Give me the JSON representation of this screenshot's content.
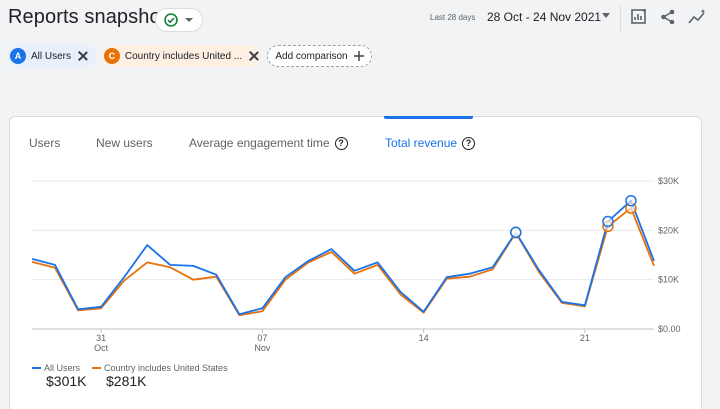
{
  "header": {
    "title": "Reports snapshot",
    "date_label": "Last 28 days",
    "date_range": "28 Oct - 24 Nov 2021",
    "icons": [
      "check-circle-icon",
      "chevron-down-icon",
      "customize-report-icon",
      "share-icon",
      "insights-icon"
    ]
  },
  "comparisons": [
    {
      "badge": "A",
      "label": "All Users",
      "color": "#1a73e8",
      "bg": "#e8f0fe"
    },
    {
      "badge": "C",
      "label": "Country includes United ...",
      "color": "#e8710a",
      "bg": "#feefe3"
    }
  ],
  "add_comparison_label": "Add comparison",
  "tabs": [
    {
      "label": "Users",
      "active": false
    },
    {
      "label": "New users",
      "active": false
    },
    {
      "label": "Average engagement time",
      "active": false,
      "help": true
    },
    {
      "label": "Total revenue",
      "active": true,
      "help": true
    }
  ],
  "chart_data": {
    "type": "line",
    "x_tick_labels": [
      {
        "day_index": 3,
        "label": "31",
        "sub": "Oct"
      },
      {
        "day_index": 10,
        "label": "07",
        "sub": "Nov"
      },
      {
        "day_index": 17,
        "label": "14",
        "sub": ""
      },
      {
        "day_index": 24,
        "label": "21",
        "sub": ""
      }
    ],
    "y_ticks": [
      {
        "value": 0,
        "label": "$0.00"
      },
      {
        "value": 10000,
        "label": "$10K"
      },
      {
        "value": 20000,
        "label": "$20K"
      },
      {
        "value": 30000,
        "label": "$30K"
      }
    ],
    "ylim": [
      0,
      30000
    ],
    "grid": true,
    "series": [
      {
        "name": "All Users",
        "color": "#1a73e8",
        "total": "$301K",
        "values": [
          14200,
          13000,
          4000,
          4500,
          10500,
          17000,
          13000,
          12800,
          11000,
          3000,
          4200,
          10500,
          13800,
          16200,
          11800,
          13500,
          7500,
          3500,
          10500,
          11200,
          12500,
          19600,
          12000,
          5500,
          4800,
          21800,
          26000,
          13800
        ],
        "markers": [
          21,
          25,
          26
        ]
      },
      {
        "name": "Country includes United States",
        "color": "#e8710a",
        "total": "$281K",
        "values": [
          13600,
          12400,
          3800,
          4200,
          9800,
          13500,
          12500,
          10000,
          10600,
          2800,
          3600,
          10000,
          13500,
          15600,
          11200,
          13000,
          7000,
          3300,
          10200,
          10600,
          12100,
          19500,
          11600,
          5300,
          4600,
          20800,
          24500,
          12800
        ],
        "markers": [
          21,
          25,
          26
        ]
      }
    ]
  }
}
